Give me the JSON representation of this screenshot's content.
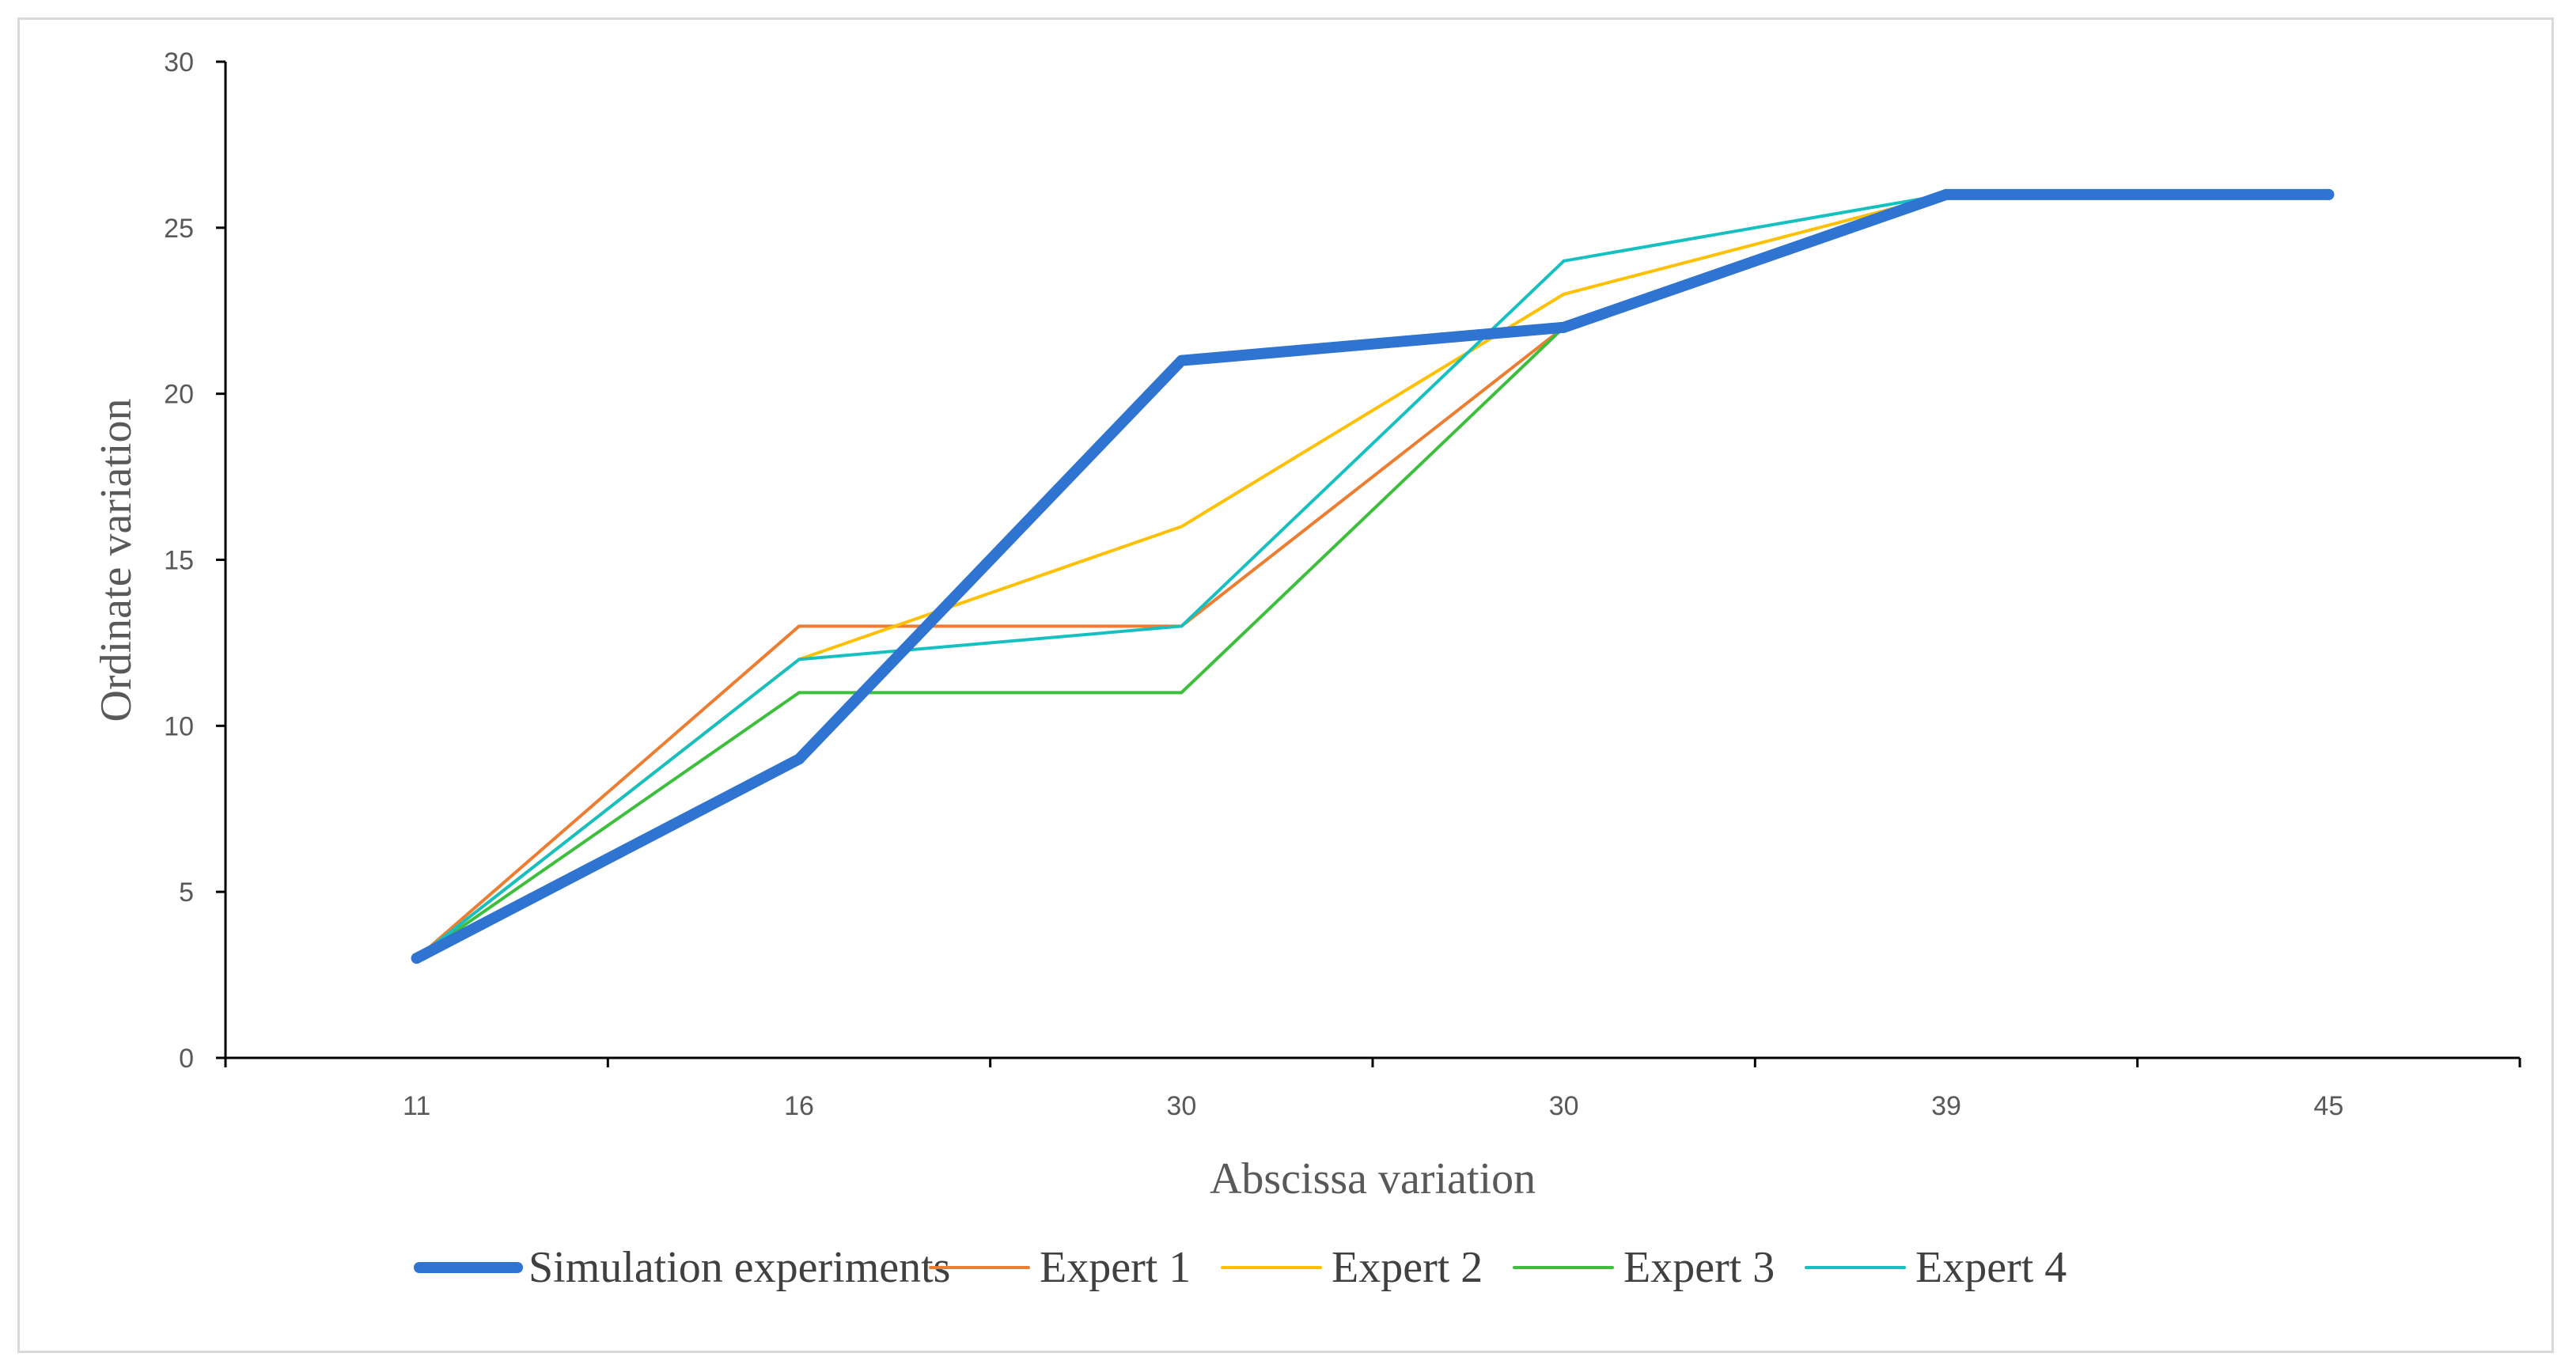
{
  "chart_data": {
    "type": "line",
    "title": "",
    "xlabel": "Abscissa variation",
    "ylabel": "Ordinate variation",
    "categories": [
      "11",
      "16",
      "30",
      "30",
      "39",
      "45"
    ],
    "ylim": [
      0,
      30
    ],
    "yticks": [
      "0",
      "5",
      "10",
      "15",
      "20",
      "25",
      "30"
    ],
    "grid": false,
    "legend_position": "bottom",
    "series": [
      {
        "name": "Simulation experiments",
        "color": "#2f74d0",
        "values": [
          3,
          9,
          21,
          22,
          26,
          26
        ],
        "emphasis": "thick"
      },
      {
        "name": "Expert 1",
        "color": "#ed7d31",
        "values": [
          3,
          13,
          13,
          22,
          26,
          26
        ],
        "emphasis": "normal"
      },
      {
        "name": "Expert 2",
        "color": "#ffc000",
        "values": [
          3,
          12,
          16,
          23,
          26,
          26
        ],
        "emphasis": "normal"
      },
      {
        "name": "Expert 3",
        "color": "#3dbf3d",
        "values": [
          3,
          11,
          11,
          22,
          26,
          26
        ],
        "emphasis": "normal"
      },
      {
        "name": "Expert 4",
        "color": "#17c0c0",
        "values": [
          3,
          12,
          13,
          24,
          26,
          26
        ],
        "emphasis": "normal"
      }
    ]
  }
}
